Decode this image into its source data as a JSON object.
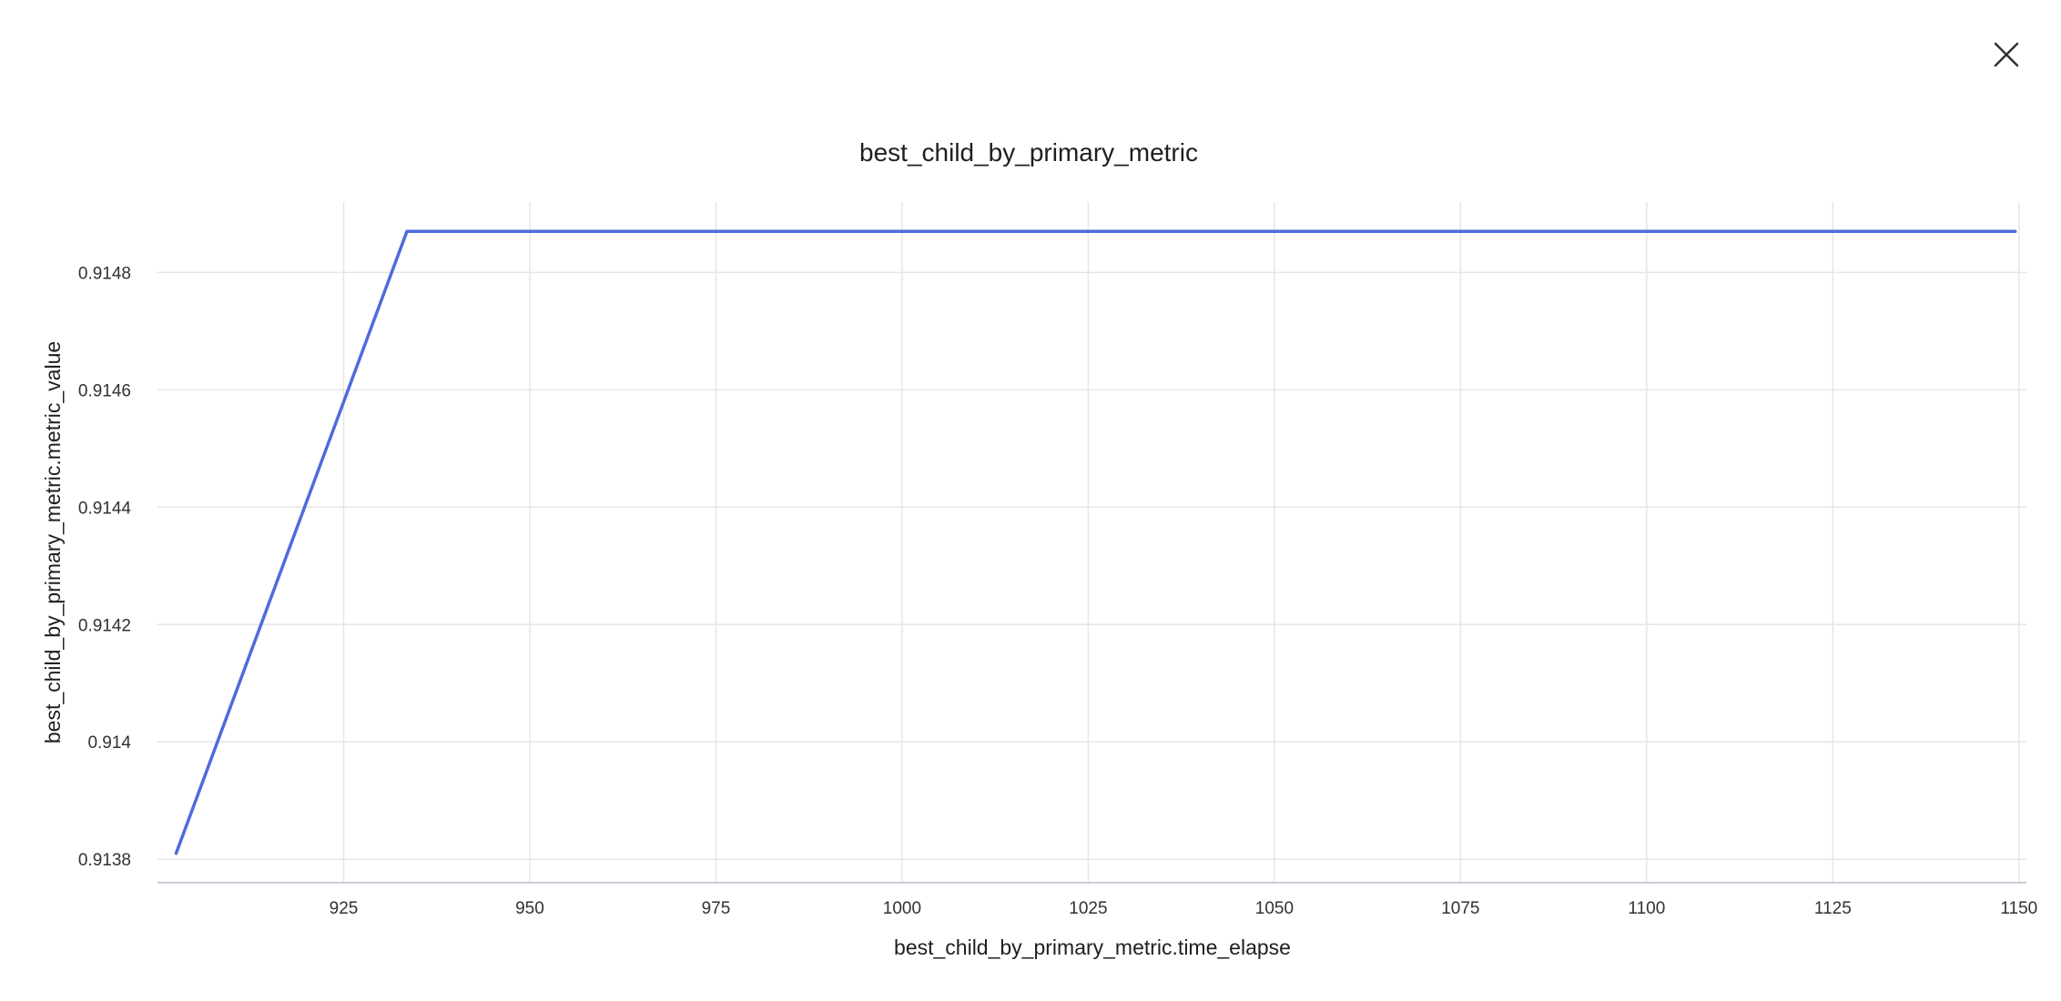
{
  "dialog": {
    "close_icon": "close-icon"
  },
  "colors": {
    "series": "#4f6bdc",
    "grid": "#e6e6e6",
    "axis": "#c8cdd8"
  },
  "chart_data": {
    "type": "line",
    "title": "best_child_by_primary_metric",
    "xlabel": "best_child_by_primary_metric.time_elapse",
    "ylabel": "best_child_by_primary_metric.metric_value",
    "xlim": [
      900,
      1151
    ],
    "ylim": [
      0.91376,
      0.91492
    ],
    "x_ticks": [
      925,
      950,
      975,
      1000,
      1025,
      1050,
      1075,
      1100,
      1125,
      1150
    ],
    "y_ticks": [
      0.9138,
      0.914,
      0.9142,
      0.9144,
      0.9146,
      0.9148
    ],
    "y_tick_labels": [
      "0.9138",
      "0.914",
      "0.9142",
      "0.9144",
      "0.9146",
      "0.9148"
    ],
    "grid": true,
    "series": [
      {
        "x": [
          902.5,
          933.5,
          1149.5
        ],
        "y": [
          0.91381,
          0.91487,
          0.91487
        ]
      }
    ]
  }
}
